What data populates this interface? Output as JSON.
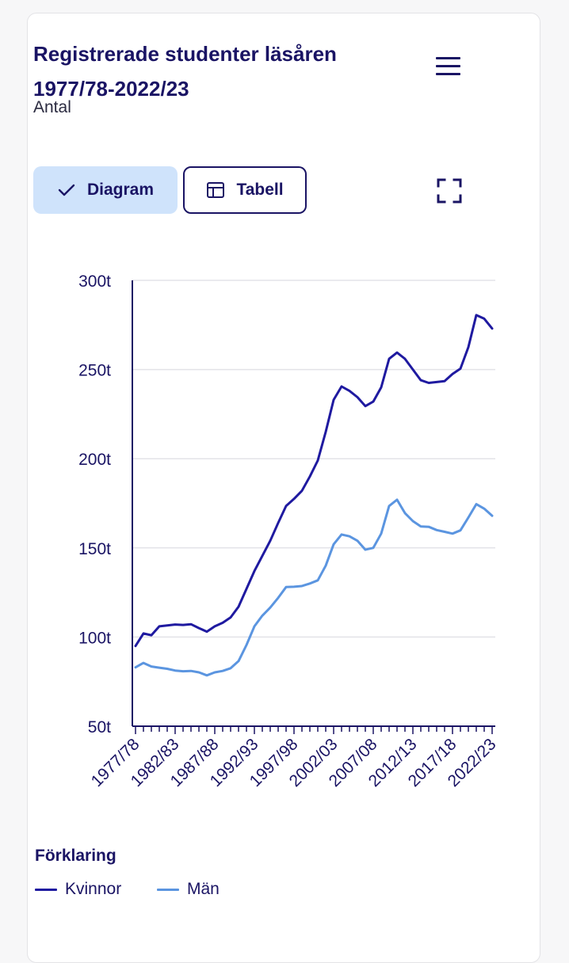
{
  "header": {
    "title": "Registrerade studenter läsåren 1977/78-2022/23",
    "subtitle": "Antal"
  },
  "toolbar": {
    "diagram_label": "Diagram",
    "tabell_label": "Tabell",
    "icons": [
      "check-icon",
      "table-icon",
      "fullscreen-icon",
      "menu-icon"
    ]
  },
  "legend": {
    "title": "Förklaring"
  },
  "colors": {
    "kvinnor": "#1f1aa0",
    "man": "#5b95e0",
    "accent": "#cfe3fb",
    "text": "#1a1464"
  },
  "chart_data": {
    "type": "line",
    "x": [
      "1977/78",
      "1978/79",
      "1979/80",
      "1980/81",
      "1981/82",
      "1982/83",
      "1983/84",
      "1984/85",
      "1985/86",
      "1986/87",
      "1987/88",
      "1988/89",
      "1989/90",
      "1990/91",
      "1991/92",
      "1992/93",
      "1993/94",
      "1994/95",
      "1995/96",
      "1996/97",
      "1997/98",
      "1998/99",
      "1999/00",
      "2000/01",
      "2001/02",
      "2002/03",
      "2003/04",
      "2004/05",
      "2005/06",
      "2006/07",
      "2007/08",
      "2008/09",
      "2009/10",
      "2010/11",
      "2011/12",
      "2012/13",
      "2013/14",
      "2014/15",
      "2015/16",
      "2016/17",
      "2017/18",
      "2018/19",
      "2019/20",
      "2020/21",
      "2021/22",
      "2022/23"
    ],
    "tick_labels": [
      "1977/78",
      "1982/83",
      "1987/88",
      "1992/93",
      "1997/98",
      "2002/03",
      "2007/08",
      "2012/13",
      "2017/18",
      "2022/23"
    ],
    "y_tick_labels": [
      "50t",
      "100t",
      "150t",
      "200t",
      "250t",
      "300t"
    ],
    "y_ticks": [
      50000,
      100000,
      150000,
      200000,
      250000,
      300000
    ],
    "ylim": [
      50000,
      300000
    ],
    "grid": true,
    "legend_position": "bottom",
    "series": [
      {
        "name": "Kvinnor",
        "values": [
          95000,
          102000,
          101000,
          106000,
          106500,
          107000,
          106800,
          107200,
          105000,
          103000,
          106000,
          108000,
          111000,
          117000,
          127000,
          137000,
          145500,
          154000,
          164000,
          173500,
          177500,
          182000,
          190000,
          199000,
          215000,
          233000,
          240500,
          238000,
          234500,
          229500,
          232000,
          240000,
          256000,
          259500,
          256000,
          250000,
          244000,
          242500,
          243000,
          243500,
          247500,
          250500,
          262500,
          280500,
          278500,
          273000
        ]
      },
      {
        "name": "Män",
        "values": [
          83000,
          85500,
          83500,
          82800,
          82200,
          81200,
          80800,
          81000,
          80200,
          78500,
          80200,
          81000,
          82500,
          86500,
          95500,
          106000,
          112000,
          116500,
          122000,
          128000,
          128200,
          128600,
          130000,
          131800,
          140000,
          152000,
          157500,
          156500,
          154000,
          149000,
          150000,
          158000,
          173500,
          177000,
          169500,
          165000,
          162000,
          161800,
          160000,
          159000,
          158000,
          159800,
          167000,
          174500,
          172000,
          168000
        ]
      }
    ]
  }
}
